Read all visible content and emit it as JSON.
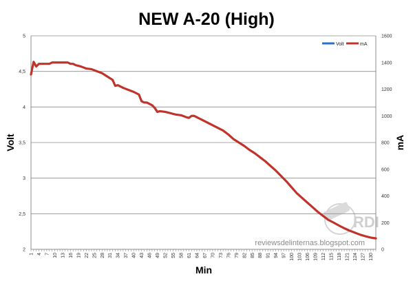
{
  "chart_data": {
    "type": "line",
    "title": "NEW A-20 (High)",
    "xlabel": "Min",
    "ylabel_left": "Volt",
    "ylabel_right": "mA",
    "ylim_left": [
      2,
      5
    ],
    "ylim_right": [
      0,
      1600
    ],
    "yticks_left": [
      "2",
      "2,5",
      "3",
      "3,5",
      "4",
      "4,5",
      "5"
    ],
    "yticks_right": [
      "0",
      "200",
      "400",
      "600",
      "800",
      "1000",
      "1200",
      "1400",
      "1600"
    ],
    "grid": true,
    "legend_position": "top-right",
    "x_categories": [
      "1",
      "4",
      "7",
      "10",
      "13",
      "16",
      "19",
      "22",
      "25",
      "28",
      "31",
      "34",
      "37",
      "40",
      "43",
      "46",
      "49",
      "52",
      "55",
      "58",
      "61",
      "64",
      "67",
      "70",
      "73",
      "76",
      "79",
      "82",
      "85",
      "88",
      "91",
      "94",
      "97",
      "100",
      "103",
      "106",
      "109",
      "112",
      "115",
      "118",
      "121",
      "124",
      "127",
      "130"
    ],
    "series": [
      {
        "name": "Volt",
        "axis": "left",
        "color": "#2a6fc9",
        "x": [],
        "values": []
      },
      {
        "name": "mA",
        "axis": "right",
        "color": "#c0332b",
        "x": [
          1,
          2,
          3,
          4,
          5,
          6,
          7,
          8,
          9,
          10,
          12,
          14,
          15,
          16,
          17,
          18,
          19,
          20,
          22,
          24,
          26,
          28,
          30,
          32,
          33,
          34,
          36,
          38,
          40,
          42,
          43,
          44,
          45,
          46,
          47,
          48,
          49,
          50,
          52,
          54,
          56,
          58,
          60,
          61,
          62,
          63,
          64,
          65,
          66,
          68,
          70,
          72,
          74,
          76,
          78,
          80,
          82,
          84,
          86,
          88,
          90,
          92,
          94,
          96,
          98,
          100,
          102,
          104,
          106,
          108,
          110,
          112,
          114,
          116,
          118,
          120,
          122,
          124,
          126,
          128,
          130,
          132
        ],
        "values": [
          1310,
          1405,
          1370,
          1390,
          1390,
          1390,
          1390,
          1390,
          1400,
          1400,
          1400,
          1400,
          1400,
          1390,
          1390,
          1380,
          1375,
          1370,
          1355,
          1350,
          1335,
          1320,
          1295,
          1270,
          1225,
          1230,
          1210,
          1195,
          1180,
          1160,
          1110,
          1100,
          1100,
          1090,
          1080,
          1060,
          1030,
          1035,
          1030,
          1020,
          1010,
          1005,
          990,
          985,
          1000,
          1000,
          990,
          980,
          970,
          950,
          930,
          910,
          890,
          860,
          825,
          800,
          775,
          745,
          720,
          690,
          660,
          625,
          590,
          550,
          510,
          465,
          420,
          385,
          350,
          315,
          280,
          250,
          220,
          200,
          178,
          158,
          140,
          125,
          110,
          98,
          88,
          82
        ]
      }
    ]
  },
  "watermark": {
    "text": "reviewsdelinternas.blogspot.com",
    "logo_text": "RDI"
  }
}
